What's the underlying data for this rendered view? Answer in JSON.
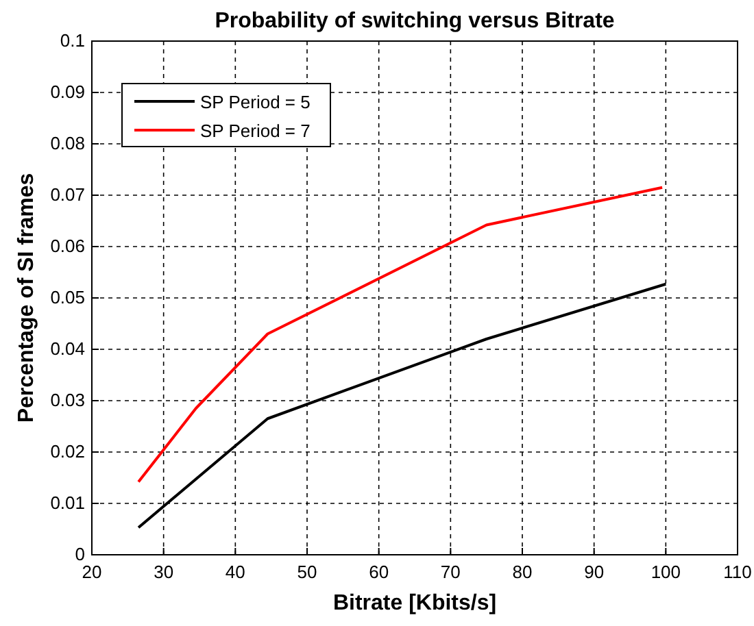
{
  "chart_data": {
    "type": "line",
    "title": "Probability of switching versus Bitrate",
    "xlabel": "Bitrate [Kbits/s]",
    "ylabel": "Percentage of SI frames",
    "series": [
      {
        "name": "SP Period = 5",
        "color": "#000000",
        "x": [
          26.5,
          44.5,
          75,
          100
        ],
        "values": [
          0.0053,
          0.0265,
          0.042,
          0.0527
        ]
      },
      {
        "name": "SP Period = 7",
        "color": "#ff0000",
        "x": [
          26.5,
          34.5,
          44.5,
          75,
          99.5
        ],
        "values": [
          0.0142,
          0.0285,
          0.043,
          0.0642,
          0.0715
        ]
      }
    ],
    "xlim": [
      20,
      110
    ],
    "xticks": [
      20,
      30,
      40,
      50,
      60,
      70,
      80,
      90,
      100,
      110
    ],
    "ylim": [
      0,
      0.1
    ],
    "yticks": [
      0,
      0.01,
      0.02,
      0.03,
      0.04,
      0.05,
      0.06,
      0.07,
      0.08,
      0.09,
      0.1
    ],
    "grid": true,
    "legend": "top left",
    "line_style": "solid"
  }
}
